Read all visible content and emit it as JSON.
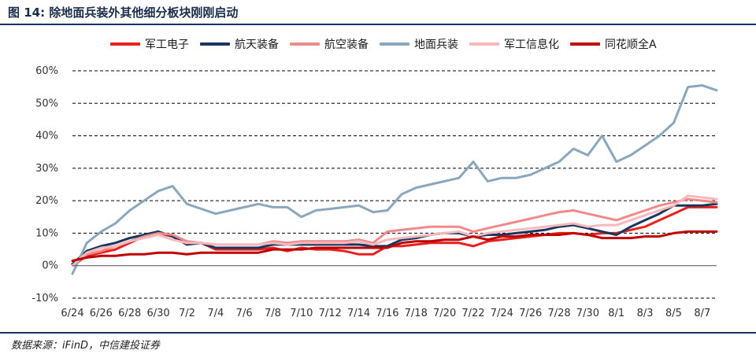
{
  "figure_title": "图 14:  除地面兵装外其他细分板块刚刚启动",
  "source_note": "数据来源：iFinD，中信建投证券",
  "chart_data": {
    "type": "line",
    "x": [
      "6/24",
      "6/25",
      "6/26",
      "6/27",
      "6/28",
      "6/29",
      "6/30",
      "7/1",
      "7/2",
      "7/3",
      "7/4",
      "7/5",
      "7/6",
      "7/7",
      "7/8",
      "7/9",
      "7/10",
      "7/11",
      "7/12",
      "7/13",
      "7/14",
      "7/15",
      "7/16",
      "7/17",
      "7/18",
      "7/19",
      "7/20",
      "7/21",
      "7/22",
      "7/23",
      "7/24",
      "7/25",
      "7/26",
      "7/27",
      "7/28",
      "7/29",
      "7/30",
      "7/31",
      "8/1",
      "8/2",
      "8/3",
      "8/4",
      "8/5",
      "8/6",
      "8/7",
      "8/8"
    ],
    "x_tick_labels": [
      "6/24",
      "6/26",
      "6/28",
      "6/30",
      "7/2",
      "7/4",
      "7/6",
      "7/8",
      "7/10",
      "7/12",
      "7/14",
      "7/16",
      "7/18",
      "7/20",
      "7/22",
      "7/24",
      "7/26",
      "7/28",
      "7/30",
      "8/1",
      "8/3",
      "8/5",
      "8/7"
    ],
    "y_tick_labels": [
      "-10%",
      "0%",
      "10%",
      "20%",
      "30%",
      "40%",
      "50%",
      "60%"
    ],
    "ylim": [
      -10,
      60
    ],
    "grid": "horizontal-dashed",
    "legend_position": "top",
    "series": [
      {
        "name": "军工电子",
        "color": "#e8201e",
        "values": [
          0,
          3,
          4,
          5,
          7,
          9,
          10,
          9,
          7,
          7,
          5,
          5,
          5,
          5,
          5.5,
          4.5,
          5.5,
          5,
          5,
          4.5,
          3.5,
          3.5,
          6,
          6,
          6.5,
          7,
          7,
          7,
          6,
          7.5,
          8,
          8.5,
          9,
          9.5,
          10,
          10,
          9.5,
          10,
          10,
          11,
          12,
          14,
          16,
          18,
          18,
          18
        ]
      },
      {
        "name": "航天装备",
        "color": "#17375e",
        "values": [
          0.5,
          4.5,
          6,
          7,
          8.5,
          9.5,
          10.5,
          9,
          6.5,
          7,
          5.5,
          5.5,
          5.5,
          5.5,
          6.5,
          6.5,
          6.5,
          6.5,
          6.5,
          6.5,
          6.5,
          6,
          6,
          8,
          8.5,
          9.5,
          10,
          10,
          9,
          9.5,
          9.5,
          10,
          10.5,
          11,
          12,
          12.5,
          11.5,
          10.5,
          9.5,
          12,
          14,
          16,
          18.5,
          18.5,
          18.5,
          19
        ]
      },
      {
        "name": "航空装备",
        "color": "#f08a8a",
        "values": [
          0,
          3.5,
          4.5,
          6,
          7.5,
          9,
          10,
          9.5,
          7.5,
          7,
          6.5,
          6.5,
          6.5,
          6.5,
          7.5,
          7,
          7.5,
          7.5,
          7.5,
          7.5,
          8,
          7,
          10.5,
          11,
          11.5,
          12,
          12,
          12,
          10.5,
          11.5,
          12.5,
          13.5,
          14.5,
          15.5,
          16.5,
          17,
          16,
          15,
          14,
          15.5,
          17,
          18.5,
          19.5,
          20.5,
          20,
          19.5
        ]
      },
      {
        "name": "地面兵装",
        "color": "#8ba7bd",
        "values": [
          -2.5,
          7,
          10.5,
          13,
          17,
          20,
          23,
          24.5,
          19,
          17.5,
          16,
          17,
          18,
          19,
          18,
          18,
          15,
          17,
          17.5,
          18,
          18.5,
          16.5,
          17,
          22,
          24,
          25,
          26,
          27,
          32,
          26,
          27,
          27,
          28,
          30,
          32,
          36,
          34,
          40,
          32,
          34,
          37,
          40,
          44,
          55,
          55.5,
          54
        ]
      },
      {
        "name": "军工信息化",
        "color": "#f8b8bc",
        "values": [
          0,
          4,
          5.5,
          6,
          7.5,
          8.5,
          9.5,
          8,
          7,
          7,
          6.5,
          6.5,
          6.5,
          6.5,
          7,
          6.5,
          7,
          7,
          7,
          7,
          7.5,
          6.5,
          8,
          8.5,
          9,
          9.5,
          10,
          10.5,
          9,
          10,
          10.5,
          11,
          11.5,
          12,
          12.5,
          13,
          12,
          12.5,
          12.5,
          14,
          15.5,
          17,
          18.5,
          21.5,
          21,
          20.5
        ]
      },
      {
        "name": "同花顺全A",
        "color": "#c00000",
        "values": [
          1.5,
          2.5,
          3,
          3,
          3.5,
          3.5,
          4,
          4,
          3.5,
          4,
          4,
          4,
          4,
          4,
          5,
          5,
          5,
          5.5,
          5.5,
          5.5,
          5.5,
          5.5,
          5.5,
          7,
          7.5,
          7.5,
          8,
          8,
          9,
          8,
          9,
          9,
          9.5,
          9.5,
          9.5,
          10,
          9.5,
          8.5,
          8.5,
          8.5,
          9,
          9,
          10,
          10.5,
          10.5,
          10.5
        ]
      }
    ]
  }
}
